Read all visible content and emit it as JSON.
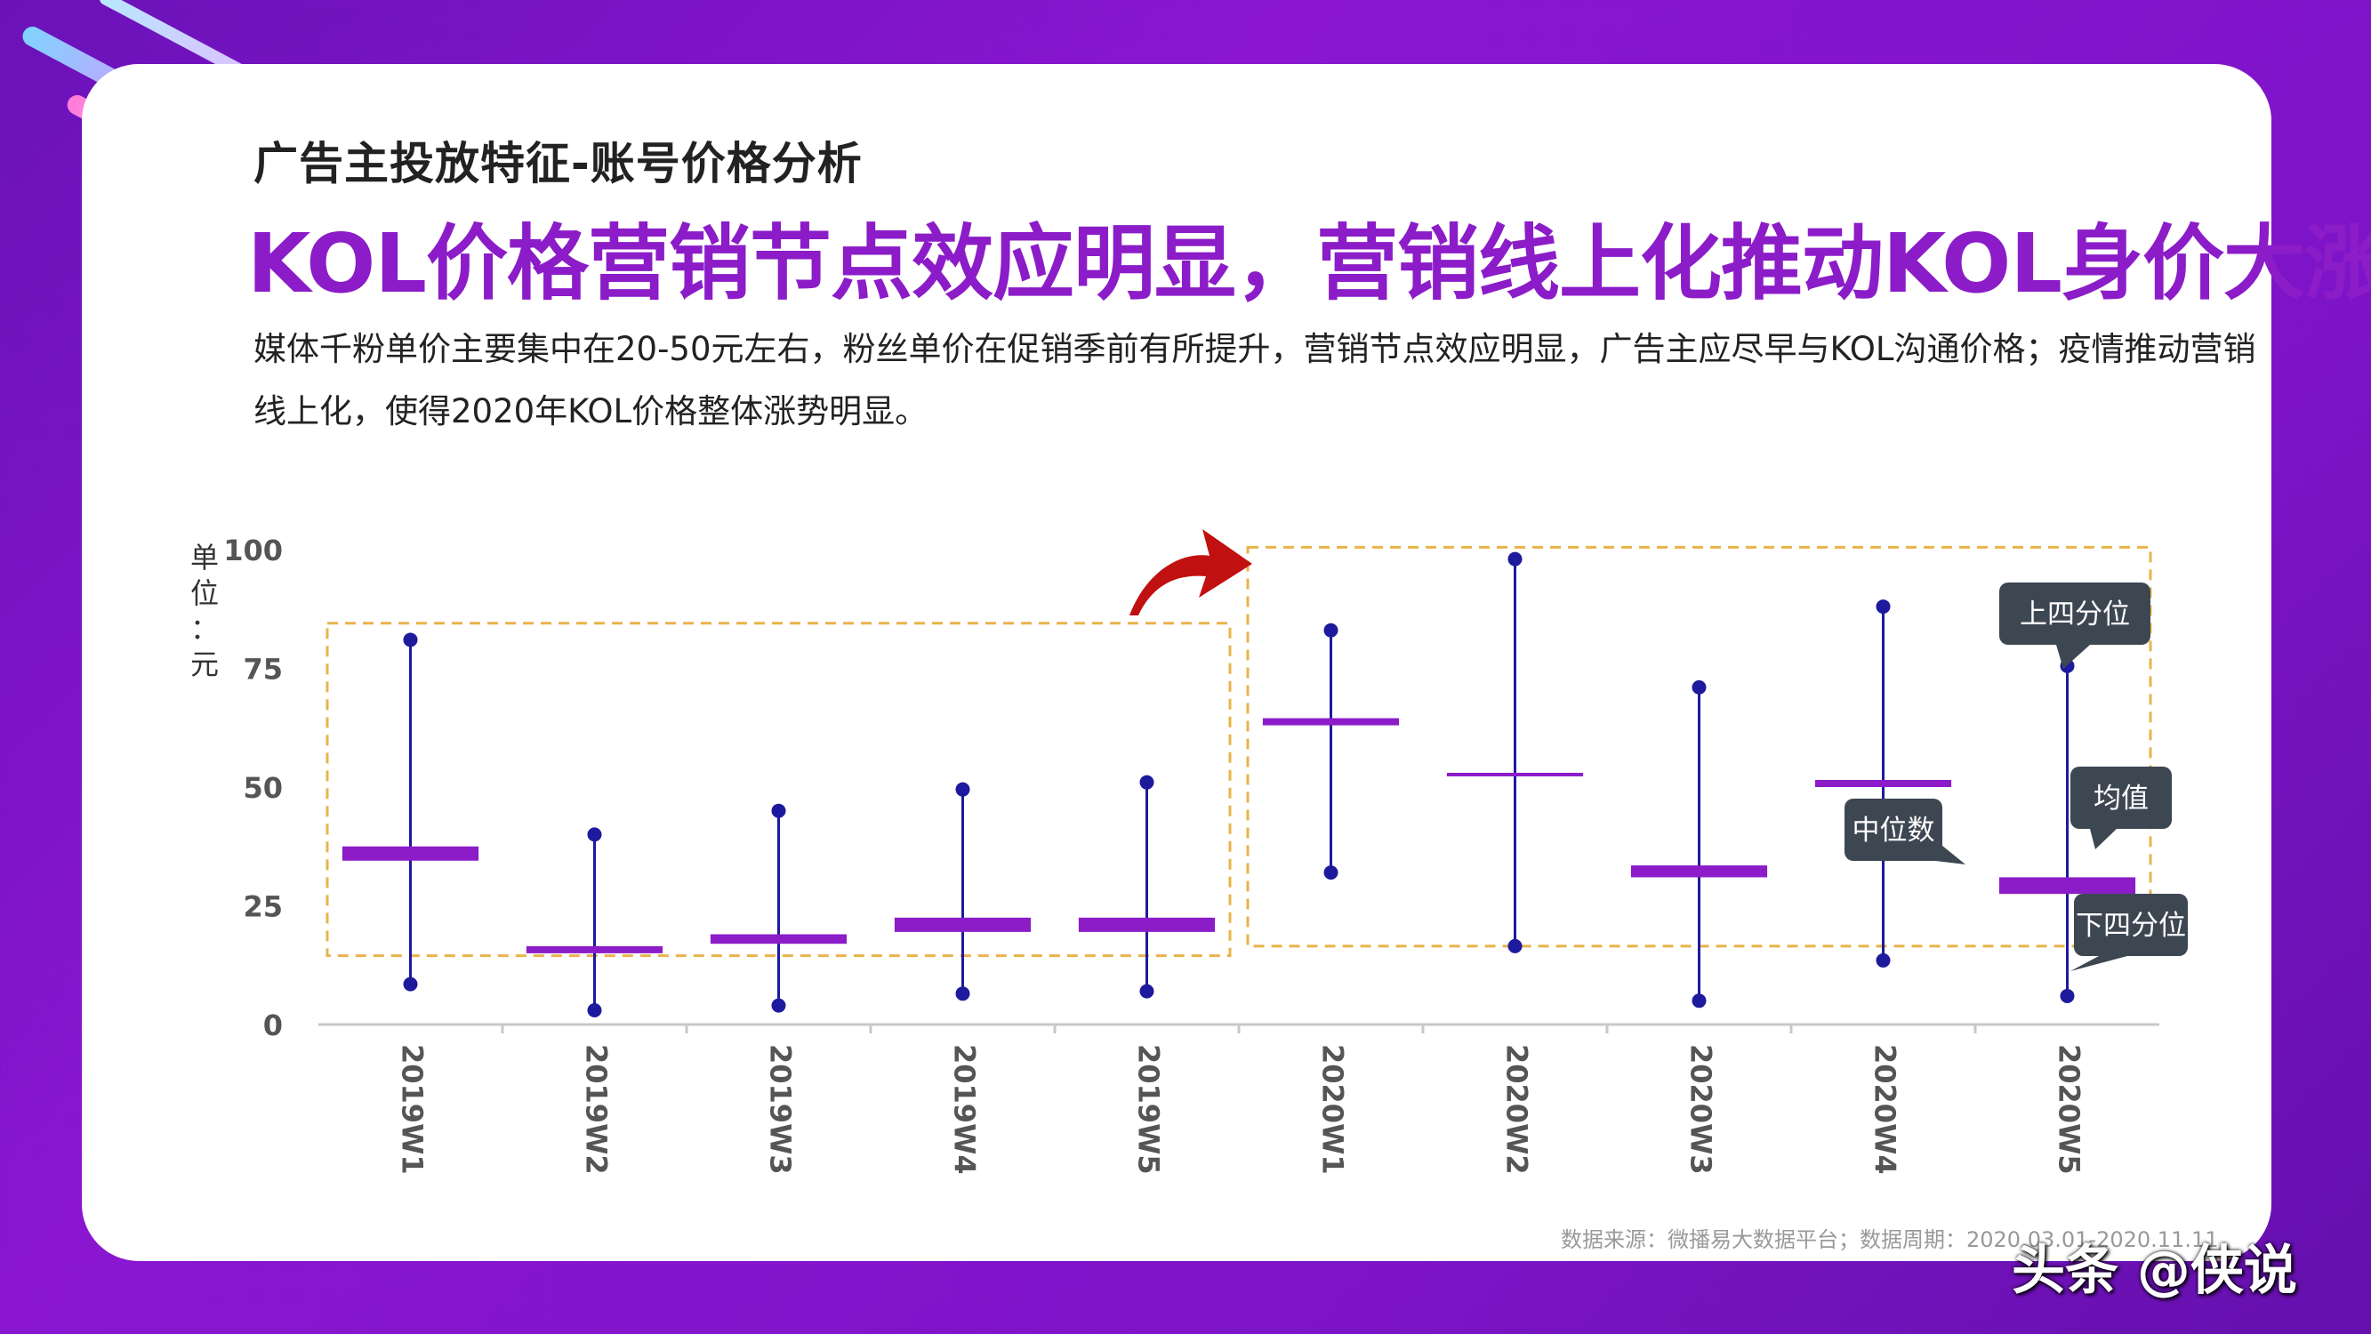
{
  "header": {
    "subtitle": "广告主投放特征-账号价格分析",
    "headline": "KOL价格营销节点效应明显，营销线上化推动KOL身价大涨",
    "description": "媒体千粉单价主要集中在20-50元左右，粉丝单价在促销季前有所提升，营销节点效应明显，广告主应尽早与KOL沟通价格；疫情推动营销线上化，使得2020年KOL价格整体涨势明显。"
  },
  "colors": {
    "accent": "#8b1cc8",
    "whisker": "#1d1a9e",
    "highlight_box": "#e8b44a",
    "arrow": "#c01010",
    "callout": "#3d4752"
  },
  "chart_data": {
    "type": "box",
    "ylabel": "单位：元",
    "ylim": [
      0,
      100
    ],
    "yticks": [
      0,
      25,
      50,
      75,
      100
    ],
    "categories": [
      "2019W1",
      "2019W2",
      "2019W3",
      "2019W4",
      "2019W5",
      "2020W1",
      "2020W2",
      "2020W3",
      "2020W4",
      "2020W5"
    ],
    "items": [
      {
        "category": "2019W1",
        "max": 81,
        "min": 8.5,
        "mean_low": 34.5,
        "mean_high": 37.5
      },
      {
        "category": "2019W2",
        "max": 40,
        "min": 3,
        "mean_low": 15,
        "mean_high": 16.5
      },
      {
        "category": "2019W3",
        "max": 45,
        "min": 4,
        "mean_low": 17,
        "mean_high": 19
      },
      {
        "category": "2019W4",
        "max": 49.5,
        "min": 6.5,
        "mean_low": 19.5,
        "mean_high": 22.5
      },
      {
        "category": "2019W5",
        "max": 51,
        "min": 7,
        "mean_low": 19.5,
        "mean_high": 22.5
      },
      {
        "category": "2020W1",
        "max": 83,
        "min": 32,
        "mean_low": 63,
        "mean_high": 64.5
      },
      {
        "category": "2020W2",
        "max": 98,
        "min": 16.5,
        "mean_low": 52.5,
        "mean_high": 53
      },
      {
        "category": "2020W3",
        "max": 71,
        "min": 5,
        "mean_low": 31,
        "mean_high": 33.5
      },
      {
        "category": "2020W4",
        "max": 88,
        "min": 13.5,
        "mean_low": 50,
        "mean_high": 51.5
      },
      {
        "category": "2020W5",
        "max": 75.5,
        "min": 6,
        "mean_low": 27.5,
        "mean_high": 31
      }
    ],
    "annotations": {
      "upper_quartile": "上四分位",
      "mean": "均值",
      "median": "中位数",
      "lower_quartile": "下四分位"
    }
  },
  "footer": {
    "source": "数据来源：微播易大数据平台；数据周期：2020.03.01-2020.11.11",
    "credit": "头条 @侠说"
  }
}
